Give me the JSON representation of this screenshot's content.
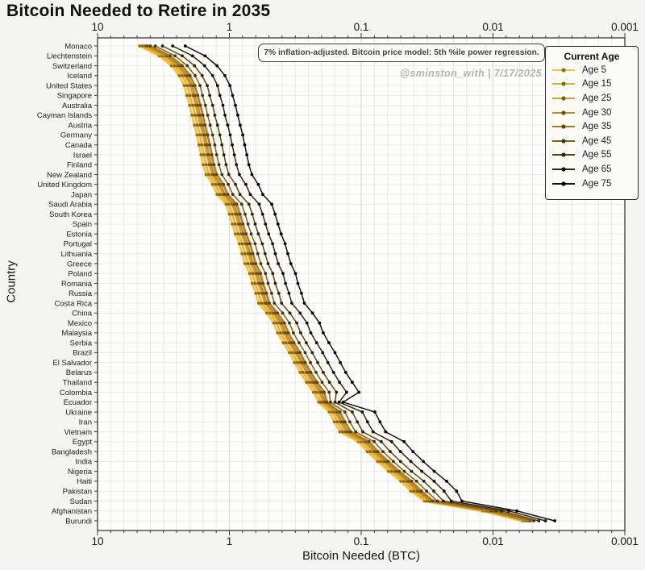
{
  "chart_data": {
    "type": "line",
    "title": "Bitcoin Needed to Retire in 2035",
    "xlabel": "Bitcoin Needed (BTC)",
    "ylabel": "Country",
    "x_scale": "log",
    "x_reversed": true,
    "x_range": [
      10,
      0.001
    ],
    "x_ticks": [
      "10",
      "1",
      "0.1",
      "0.01",
      "0.001"
    ],
    "grid": "fine log grid, light gray",
    "legend_title": "Current Age",
    "legend_position": "upper right",
    "annotation": "7% inflation-adjusted. Bitcoin price model: 5th %ile power regression.",
    "watermark": "@sminston_with  |  7/17/2025",
    "ages": [
      {
        "label": "Age 5",
        "color": "#EFC145",
        "marker": "#8F6D1C"
      },
      {
        "label": "Age 15",
        "color": "#E5B134",
        "marker": "#85631A"
      },
      {
        "label": "Age 25",
        "color": "#D49E28",
        "marker": "#7A5917"
      },
      {
        "label": "Age 30",
        "color": "#C08C22",
        "marker": "#6E4F14"
      },
      {
        "label": "Age 35",
        "color": "#A8791E",
        "marker": "#5E4210"
      },
      {
        "label": "Age 45",
        "color": "#85601A",
        "marker": "#46300B"
      },
      {
        "label": "Age 55",
        "color": "#5E4413",
        "marker": "#2E2007"
      },
      {
        "label": "Age 65",
        "color": "#33250B",
        "marker": "#150F03"
      },
      {
        "label": "Age 75",
        "color": "#121212",
        "marker": "#000000"
      }
    ],
    "countries": [
      {
        "name": "Monaco",
        "btc": [
          4.8,
          4.56,
          4.32,
          4.18,
          3.98,
          3.65,
          3.22,
          2.69,
          2.16
        ]
      },
      {
        "name": "Liechtenstein",
        "btc": [
          3.4,
          3.23,
          3.06,
          2.96,
          2.82,
          2.58,
          2.28,
          1.9,
          1.53
        ]
      },
      {
        "name": "Switzerland",
        "btc": [
          2.75,
          2.61,
          2.48,
          2.39,
          2.28,
          2.09,
          1.84,
          1.54,
          1.24
        ]
      },
      {
        "name": "Iceland",
        "btc": [
          2.4,
          2.28,
          2.16,
          2.09,
          1.99,
          1.82,
          1.61,
          1.34,
          1.08
        ]
      },
      {
        "name": "United States",
        "btc": [
          2.2,
          2.09,
          1.98,
          1.91,
          1.83,
          1.67,
          1.47,
          1.23,
          0.99
        ]
      },
      {
        "name": "Singapore",
        "btc": [
          2.1,
          2.0,
          1.89,
          1.83,
          1.74,
          1.6,
          1.41,
          1.18,
          0.945
        ]
      },
      {
        "name": "Australia",
        "btc": [
          2.0,
          1.9,
          1.8,
          1.74,
          1.66,
          1.52,
          1.34,
          1.12,
          0.9
        ]
      },
      {
        "name": "Cayman Islands",
        "btc": [
          1.92,
          1.82,
          1.73,
          1.67,
          1.59,
          1.46,
          1.29,
          1.08,
          0.864
        ]
      },
      {
        "name": "Austria",
        "btc": [
          1.84,
          1.75,
          1.66,
          1.6,
          1.53,
          1.4,
          1.23,
          1.03,
          0.828
        ]
      },
      {
        "name": "Germany",
        "btc": [
          1.76,
          1.67,
          1.58,
          1.53,
          1.46,
          1.34,
          1.18,
          0.986,
          0.792
        ]
      },
      {
        "name": "Canada",
        "btc": [
          1.7,
          1.62,
          1.53,
          1.48,
          1.41,
          1.29,
          1.14,
          0.952,
          0.765
        ]
      },
      {
        "name": "Israel",
        "btc": [
          1.64,
          1.56,
          1.48,
          1.43,
          1.36,
          1.25,
          1.1,
          0.918,
          0.738
        ]
      },
      {
        "name": "Finland",
        "btc": [
          1.58,
          1.5,
          1.42,
          1.37,
          1.31,
          1.2,
          1.06,
          0.885,
          0.711
        ]
      },
      {
        "name": "New Zealand",
        "btc": [
          1.5,
          1.43,
          1.35,
          1.31,
          1.25,
          1.14,
          1.01,
          0.84,
          0.675
        ]
      },
      {
        "name": "United Kingdom",
        "btc": [
          1.34,
          1.27,
          1.21,
          1.17,
          1.11,
          1.02,
          0.898,
          0.75,
          0.603
        ]
      },
      {
        "name": "Japan",
        "btc": [
          1.24,
          1.18,
          1.12,
          1.08,
          1.03,
          0.942,
          0.831,
          0.694,
          0.558
        ]
      },
      {
        "name": "Saudi Arabia",
        "btc": [
          1.06,
          1.01,
          0.954,
          0.922,
          0.88,
          0.806,
          0.71,
          0.594,
          0.477
        ]
      },
      {
        "name": "South Korea",
        "btc": [
          1.0,
          0.95,
          0.9,
          0.87,
          0.83,
          0.76,
          0.67,
          0.56,
          0.45
        ]
      },
      {
        "name": "Spain",
        "btc": [
          0.95,
          0.903,
          0.855,
          0.827,
          0.789,
          0.722,
          0.637,
          0.532,
          0.428
        ]
      },
      {
        "name": "Estonia",
        "btc": [
          0.9,
          0.855,
          0.81,
          0.783,
          0.747,
          0.684,
          0.603,
          0.504,
          0.405
        ]
      },
      {
        "name": "Portugal",
        "btc": [
          0.84,
          0.798,
          0.756,
          0.731,
          0.697,
          0.638,
          0.563,
          0.47,
          0.378
        ]
      },
      {
        "name": "Lithuania",
        "btc": [
          0.8,
          0.76,
          0.72,
          0.696,
          0.664,
          0.608,
          0.536,
          0.448,
          0.36
        ]
      },
      {
        "name": "Greece",
        "btc": [
          0.76,
          0.722,
          0.684,
          0.661,
          0.631,
          0.578,
          0.509,
          0.426,
          0.342
        ]
      },
      {
        "name": "Poland",
        "btc": [
          0.7,
          0.665,
          0.63,
          0.609,
          0.581,
          0.532,
          0.469,
          0.392,
          0.315
        ]
      },
      {
        "name": "Romania",
        "btc": [
          0.67,
          0.637,
          0.603,
          0.583,
          0.556,
          0.509,
          0.449,
          0.375,
          0.302
        ]
      },
      {
        "name": "Russia",
        "btc": [
          0.63,
          0.599,
          0.567,
          0.548,
          0.523,
          0.479,
          0.422,
          0.353,
          0.284
        ]
      },
      {
        "name": "Costa Rica",
        "btc": [
          0.6,
          0.57,
          0.54,
          0.522,
          0.498,
          0.456,
          0.402,
          0.336,
          0.27
        ]
      },
      {
        "name": "China",
        "btc": [
          0.52,
          0.494,
          0.468,
          0.452,
          0.432,
          0.395,
          0.348,
          0.291,
          0.234
        ]
      },
      {
        "name": "Mexico",
        "btc": [
          0.46,
          0.437,
          0.414,
          0.4,
          0.382,
          0.35,
          0.308,
          0.258,
          0.207
        ]
      },
      {
        "name": "Malaysia",
        "btc": [
          0.43,
          0.409,
          0.387,
          0.374,
          0.357,
          0.327,
          0.288,
          0.241,
          0.194
        ]
      },
      {
        "name": "Serbia",
        "btc": [
          0.39,
          0.371,
          0.351,
          0.339,
          0.324,
          0.296,
          0.261,
          0.218,
          0.176
        ]
      },
      {
        "name": "Brazil",
        "btc": [
          0.35,
          0.333,
          0.315,
          0.305,
          0.291,
          0.266,
          0.235,
          0.196,
          0.158
        ]
      },
      {
        "name": "El Salvador",
        "btc": [
          0.32,
          0.304,
          0.288,
          0.278,
          0.266,
          0.243,
          0.214,
          0.179,
          0.144
        ]
      },
      {
        "name": "Belarus",
        "btc": [
          0.29,
          0.276,
          0.261,
          0.252,
          0.241,
          0.22,
          0.194,
          0.162,
          0.131
        ]
      },
      {
        "name": "Thailand",
        "btc": [
          0.26,
          0.247,
          0.234,
          0.226,
          0.216,
          0.198,
          0.174,
          0.146,
          0.117
        ]
      },
      {
        "name": "Colombia",
        "btc": [
          0.23,
          0.219,
          0.207,
          0.2,
          0.191,
          0.175,
          0.154,
          0.129,
          0.104
        ]
      },
      {
        "name": "Ecuador",
        "btc": [
          0.21,
          0.202,
          0.194,
          0.188,
          0.182,
          0.171,
          0.158,
          0.147,
          0.137
        ]
      },
      {
        "name": "Ukraine",
        "btc": [
          0.175,
          0.166,
          0.158,
          0.152,
          0.145,
          0.133,
          0.117,
          0.098,
          0.0788
        ]
      },
      {
        "name": "Iran",
        "btc": [
          0.16,
          0.152,
          0.144,
          0.139,
          0.133,
          0.122,
          0.107,
          0.0896,
          0.072
        ]
      },
      {
        "name": "Vietnam",
        "btc": [
          0.145,
          0.138,
          0.131,
          0.126,
          0.12,
          0.11,
          0.0972,
          0.0812,
          0.0653
        ]
      },
      {
        "name": "Egypt",
        "btc": [
          0.105,
          0.0998,
          0.0945,
          0.0914,
          0.0872,
          0.0798,
          0.0704,
          0.0588,
          0.0473
        ]
      },
      {
        "name": "Bangladesh",
        "btc": [
          0.09,
          0.0855,
          0.081,
          0.0783,
          0.0747,
          0.0684,
          0.0603,
          0.0504,
          0.0405
        ]
      },
      {
        "name": "India",
        "btc": [
          0.075,
          0.0713,
          0.0675,
          0.0653,
          0.0623,
          0.057,
          0.0503,
          0.042,
          0.0338
        ]
      },
      {
        "name": "Nigeria",
        "btc": [
          0.062,
          0.0589,
          0.0558,
          0.0539,
          0.0515,
          0.0471,
          0.0415,
          0.0347,
          0.0279
        ]
      },
      {
        "name": "Haiti",
        "btc": [
          0.05,
          0.0475,
          0.045,
          0.0435,
          0.0415,
          0.038,
          0.0335,
          0.028,
          0.0225
        ]
      },
      {
        "name": "Pakistan",
        "btc": [
          0.042,
          0.0399,
          0.0378,
          0.0365,
          0.0349,
          0.0319,
          0.0281,
          0.0235,
          0.0189
        ]
      },
      {
        "name": "Sudan",
        "btc": [
          0.033,
          0.0317,
          0.0303,
          0.0295,
          0.0284,
          0.0264,
          0.0238,
          0.0207,
          0.0172
        ]
      },
      {
        "name": "Afghanistan",
        "btc": [
          0.012,
          0.0115,
          0.011,
          0.0106,
          0.0102,
          0.0095,
          0.0086,
          0.0076,
          0.0066
        ]
      },
      {
        "name": "Burundi",
        "btc": [
          0.006,
          0.0058,
          0.0056,
          0.0054,
          0.0052,
          0.0049,
          0.0045,
          0.004,
          0.0034
        ]
      }
    ]
  }
}
